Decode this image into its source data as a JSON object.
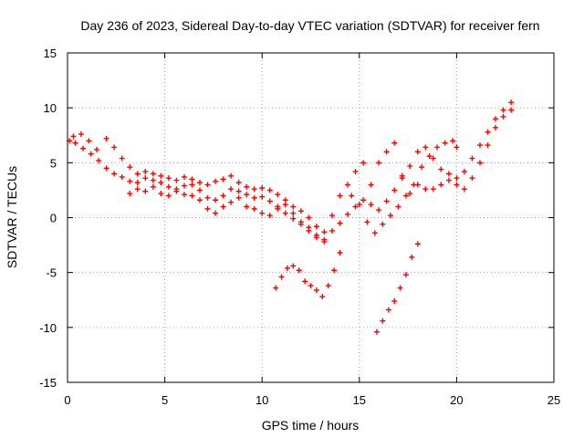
{
  "chart_data": {
    "type": "scatter",
    "title": "Day 236 of 2023, Sidereal Day-to-day VTEC variation (SDTVAR) for receiver fern",
    "xlabel": "GPS time / hours",
    "ylabel": "SDTVAR / TECUs",
    "xlim": [
      0,
      25
    ],
    "ylim": [
      -15,
      15
    ],
    "xticks": [
      0,
      5,
      10,
      15,
      20,
      25
    ],
    "yticks": [
      -15,
      -10,
      -5,
      0,
      5,
      10,
      15
    ],
    "grid": true,
    "marker": "plus",
    "color": "#ff0000",
    "series": [
      {
        "points": [
          [
            0.1,
            7.0
          ],
          [
            0.4,
            6.8
          ],
          [
            0.8,
            6.3
          ],
          [
            1.2,
            5.8
          ],
          [
            1.6,
            5.2
          ],
          [
            2.0,
            4.5
          ],
          [
            2.4,
            4.0
          ],
          [
            2.8,
            3.7
          ],
          [
            3.2,
            3.3
          ],
          [
            3.6,
            3.2
          ],
          [
            4.0,
            3.6
          ],
          [
            4.4,
            3.4
          ],
          [
            4.8,
            3.2
          ],
          [
            5.2,
            2.8
          ],
          [
            5.6,
            2.6
          ],
          [
            6.0,
            2.9
          ],
          [
            6.4,
            3.0
          ],
          [
            6.8,
            2.5
          ],
          [
            7.2,
            1.8
          ],
          [
            7.6,
            1.6
          ],
          [
            8.0,
            2.0
          ],
          [
            8.4,
            2.6
          ],
          [
            8.8,
            2.4
          ],
          [
            9.2,
            2.1
          ],
          [
            9.6,
            1.8
          ],
          [
            10.0,
            1.9
          ],
          [
            10.4,
            1.5
          ],
          [
            10.8,
            1.0
          ],
          [
            11.2,
            0.4
          ],
          [
            11.6,
            -0.1
          ],
          [
            12.0,
            -0.6
          ],
          [
            12.4,
            -1.2
          ],
          [
            12.8,
            -1.8
          ],
          [
            13.2,
            -2.0
          ],
          [
            13.6,
            -1.2
          ],
          [
            14.0,
            -0.5
          ],
          [
            14.4,
            0.3
          ],
          [
            14.8,
            1.0
          ],
          [
            15.2,
            1.6
          ],
          [
            15.6,
            1.2
          ],
          [
            16.0,
            0.7
          ],
          [
            16.4,
            1.5
          ],
          [
            16.8,
            2.5
          ],
          [
            17.2,
            3.6
          ],
          [
            17.6,
            4.7
          ],
          [
            18.0,
            6.0
          ],
          [
            18.4,
            6.4
          ],
          [
            18.8,
            5.4
          ],
          [
            19.2,
            4.4
          ],
          [
            19.6,
            4.0
          ],
          [
            20.0,
            3.6
          ],
          [
            20.4,
            4.2
          ],
          [
            20.8,
            5.4
          ],
          [
            21.2,
            6.6
          ],
          [
            21.6,
            7.8
          ],
          [
            22.0,
            9.0
          ],
          [
            22.4,
            9.8
          ],
          [
            22.8,
            10.5
          ]
        ]
      },
      {
        "points": [
          [
            0.3,
            7.4
          ],
          [
            0.7,
            7.6
          ],
          [
            1.1,
            7.0
          ],
          [
            1.5,
            6.2
          ],
          [
            2.0,
            7.2
          ],
          [
            2.4,
            6.4
          ],
          [
            2.8,
            5.4
          ],
          [
            3.2,
            4.6
          ],
          [
            3.6,
            4.0
          ],
          [
            4.0,
            4.2
          ],
          [
            4.4,
            4.0
          ],
          [
            4.8,
            3.8
          ],
          [
            5.2,
            3.6
          ],
          [
            5.6,
            3.4
          ],
          [
            6.0,
            3.7
          ],
          [
            6.4,
            3.5
          ],
          [
            6.8,
            3.2
          ],
          [
            7.2,
            3.0
          ],
          [
            7.6,
            3.3
          ],
          [
            8.0,
            3.5
          ],
          [
            8.4,
            3.8
          ],
          [
            8.8,
            3.2
          ],
          [
            9.2,
            2.8
          ],
          [
            9.6,
            2.6
          ],
          [
            10.0,
            2.7
          ],
          [
            10.4,
            2.5
          ],
          [
            10.8,
            2.1
          ],
          [
            11.2,
            1.6
          ],
          [
            11.6,
            1.0
          ],
          [
            12.0,
            0.6
          ],
          [
            12.4,
            0.0
          ],
          [
            12.8,
            -0.8
          ],
          [
            13.2,
            -1.3
          ],
          [
            13.6,
            0.2
          ],
          [
            14.0,
            2.0
          ],
          [
            14.4,
            3.0
          ],
          [
            14.8,
            4.2
          ],
          [
            15.2,
            5.0
          ],
          [
            15.6,
            3.0
          ],
          [
            16.0,
            5.0
          ],
          [
            16.4,
            6.0
          ],
          [
            16.8,
            6.8
          ],
          [
            17.2,
            3.8
          ],
          [
            17.6,
            2.2
          ],
          [
            18.0,
            3.0
          ],
          [
            18.4,
            2.6
          ],
          [
            18.8,
            2.6
          ],
          [
            19.2,
            3.0
          ],
          [
            19.6,
            3.4
          ],
          [
            20.0,
            3.0
          ],
          [
            20.4,
            2.6
          ],
          [
            20.8,
            3.6
          ],
          [
            21.2,
            5.0
          ],
          [
            21.6,
            6.6
          ],
          [
            22.0,
            8.2
          ],
          [
            22.4,
            9.2
          ],
          [
            22.8,
            9.8
          ]
        ]
      },
      {
        "points": [
          [
            3.2,
            2.2
          ],
          [
            3.6,
            2.6
          ],
          [
            4.0,
            2.4
          ],
          [
            4.4,
            2.8
          ],
          [
            4.8,
            2.2
          ],
          [
            5.2,
            2.0
          ],
          [
            5.6,
            2.4
          ],
          [
            6.0,
            2.1
          ],
          [
            6.4,
            2.0
          ],
          [
            6.8,
            1.6
          ],
          [
            7.2,
            0.8
          ],
          [
            7.6,
            0.4
          ],
          [
            8.0,
            1.0
          ],
          [
            8.4,
            1.4
          ],
          [
            8.8,
            1.8
          ],
          [
            9.2,
            1.0
          ],
          [
            9.6,
            0.8
          ],
          [
            10.0,
            0.4
          ],
          [
            10.4,
            0.2
          ],
          [
            10.8,
            0.8
          ],
          [
            11.2,
            1.2
          ],
          [
            11.6,
            0.4
          ],
          [
            12.0,
            -0.4
          ],
          [
            12.4,
            -0.9
          ],
          [
            12.8,
            -1.6
          ],
          [
            13.2,
            -2.2
          ],
          [
            14.6,
            2.0
          ],
          [
            15.0,
            1.2
          ],
          [
            15.4,
            -0.4
          ],
          [
            15.8,
            -1.4
          ],
          [
            16.2,
            -0.6
          ],
          [
            16.6,
            0.2
          ],
          [
            17.0,
            1.0
          ],
          [
            17.4,
            2.0
          ],
          [
            17.8,
            3.0
          ],
          [
            18.2,
            4.6
          ],
          [
            18.6,
            5.6
          ],
          [
            19.0,
            6.4
          ],
          [
            19.4,
            6.8
          ],
          [
            19.8,
            7.0
          ],
          [
            20.0,
            6.4
          ]
        ]
      },
      {
        "points": [
          [
            10.7,
            -6.4
          ],
          [
            11.0,
            -5.4
          ],
          [
            11.3,
            -4.6
          ],
          [
            11.6,
            -4.4
          ],
          [
            11.9,
            -4.8
          ],
          [
            12.2,
            -5.8
          ],
          [
            12.5,
            -6.2
          ],
          [
            12.8,
            -6.6
          ],
          [
            13.1,
            -7.2
          ],
          [
            13.4,
            -6.2
          ],
          [
            13.7,
            -4.8
          ],
          [
            14.0,
            -3.2
          ]
        ]
      },
      {
        "points": [
          [
            15.9,
            -10.4
          ],
          [
            16.2,
            -9.4
          ],
          [
            16.5,
            -8.4
          ],
          [
            16.8,
            -7.6
          ],
          [
            17.1,
            -6.4
          ],
          [
            17.4,
            -5.2
          ],
          [
            17.7,
            -3.6
          ],
          [
            18.0,
            -2.4
          ]
        ]
      }
    ]
  }
}
